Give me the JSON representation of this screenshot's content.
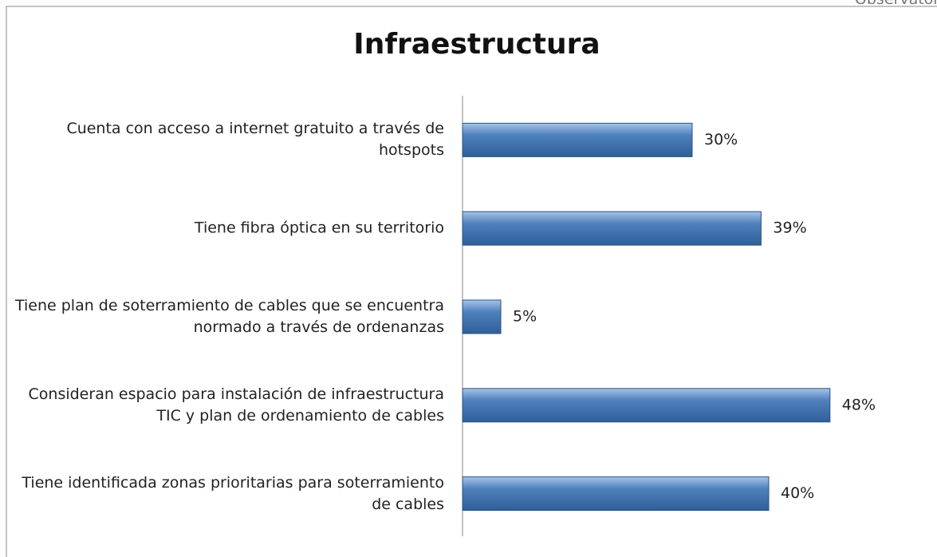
{
  "corner_text": "Observatorio",
  "chart_data": {
    "type": "bar",
    "orientation": "horizontal",
    "title": "Infraestructura",
    "categories": [
      "Cuenta con acceso a internet gratuito a través de hotspots",
      "Tiene fibra óptica en su territorio",
      "Tiene plan de soterramiento de cables que se encuentra normado a través de ordenanzas",
      "Consideran espacio para instalación de infraestructura TIC y plan de ordenamiento de cables",
      "Tiene identificada zonas prioritarias para soterramiento de cables"
    ],
    "values": [
      30,
      39,
      5,
      48,
      40
    ],
    "value_labels": [
      "30%",
      "39%",
      "5%",
      "48%",
      "40%"
    ],
    "color": "#4f81bd",
    "xlim": [
      0,
      60
    ]
  }
}
